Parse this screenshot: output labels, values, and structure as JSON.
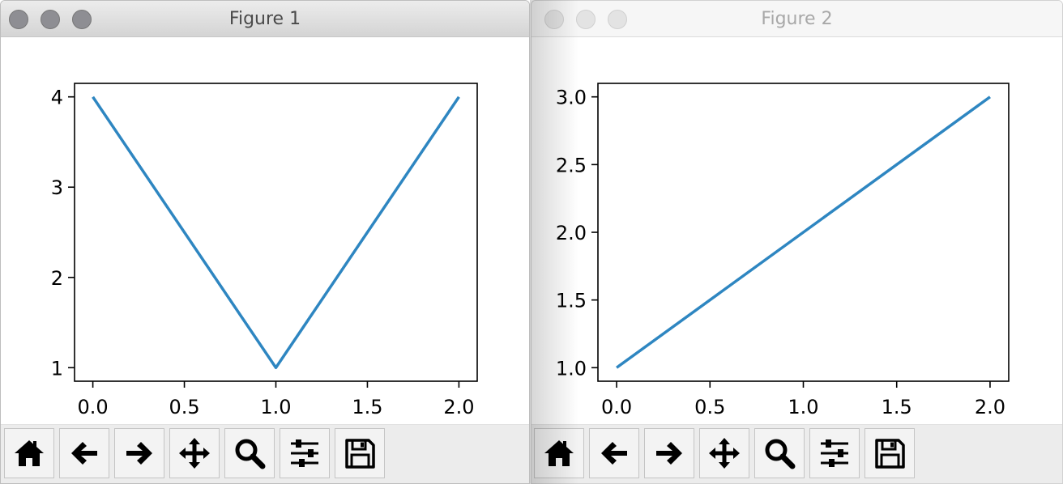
{
  "windows": [
    {
      "title": "Figure 1",
      "active": true,
      "chart_data": {
        "type": "line",
        "x": [
          0.0,
          1.0,
          2.0
        ],
        "series": [
          {
            "values": [
              4,
              1,
              4
            ],
            "color": "#2e86c1"
          }
        ],
        "xlim": [
          -0.1,
          2.1
        ],
        "ylim": [
          0.85,
          4.15
        ],
        "xticks": [
          0.0,
          0.5,
          1.0,
          1.5,
          2.0
        ],
        "xtick_labels": [
          "0.0",
          "0.5",
          "1.0",
          "1.5",
          "2.0"
        ],
        "yticks": [
          1,
          2,
          3,
          4
        ],
        "ytick_labels": [
          "1",
          "2",
          "3",
          "4"
        ],
        "title": "",
        "xlabel": "",
        "ylabel": "",
        "grid": false
      }
    },
    {
      "title": "Figure 2",
      "active": false,
      "chart_data": {
        "type": "line",
        "x": [
          0.0,
          1.0,
          2.0
        ],
        "series": [
          {
            "values": [
              1.0,
              2.0,
              3.0
            ],
            "color": "#2e86c1"
          }
        ],
        "xlim": [
          -0.1,
          2.1
        ],
        "ylim": [
          0.9,
          3.1
        ],
        "xticks": [
          0.0,
          0.5,
          1.0,
          1.5,
          2.0
        ],
        "xtick_labels": [
          "0.0",
          "0.5",
          "1.0",
          "1.5",
          "2.0"
        ],
        "yticks": [
          1.0,
          1.5,
          2.0,
          2.5,
          3.0
        ],
        "ytick_labels": [
          "1.0",
          "1.5",
          "2.0",
          "2.5",
          "3.0"
        ],
        "title": "",
        "xlabel": "",
        "ylabel": "",
        "grid": false
      }
    }
  ],
  "toolbar": {
    "buttons": [
      {
        "name": "home",
        "icon": "home-icon"
      },
      {
        "name": "back",
        "icon": "arrow-left-icon"
      },
      {
        "name": "forward",
        "icon": "arrow-right-icon"
      },
      {
        "name": "pan",
        "icon": "move-icon"
      },
      {
        "name": "zoom",
        "icon": "magnifier-icon"
      },
      {
        "name": "configure-subplots",
        "icon": "sliders-icon"
      },
      {
        "name": "save",
        "icon": "floppy-disk-icon"
      }
    ]
  }
}
